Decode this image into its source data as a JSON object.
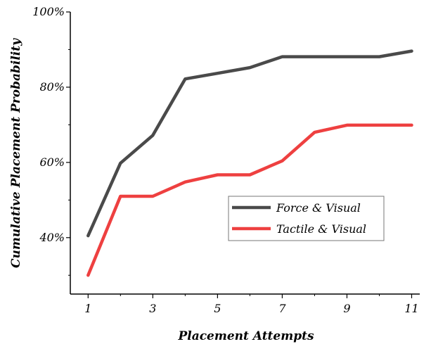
{
  "chart_data": {
    "type": "line",
    "xlabel": "Placement Attempts",
    "ylabel": "Cumulative Placement Probability",
    "x": [
      1,
      2,
      3,
      4,
      5,
      6,
      7,
      8,
      9,
      10,
      11
    ],
    "xticks": [
      1,
      3,
      5,
      7,
      9,
      11
    ],
    "xlim": [
      0.45,
      11.25
    ],
    "ylim": [
      25,
      100
    ],
    "yticks": [
      40,
      60,
      80,
      100
    ],
    "ytick_labels": [
      "40%",
      "60%",
      "80%",
      "100%"
    ],
    "grid": false,
    "legend_position": "center-right",
    "series": [
      {
        "name": "Force & Visual",
        "color": "#4a4a4a",
        "values": [
          40.5,
          59.8,
          67.2,
          82.2,
          83.7,
          85.2,
          88.1,
          88.1,
          88.1,
          88.1,
          89.6
        ]
      },
      {
        "name": "Tactile & Visual",
        "color": "#ee4040",
        "values": [
          30.0,
          51.0,
          51.0,
          54.8,
          56.7,
          56.7,
          60.4,
          68.0,
          69.9,
          69.9,
          69.9
        ]
      }
    ]
  }
}
